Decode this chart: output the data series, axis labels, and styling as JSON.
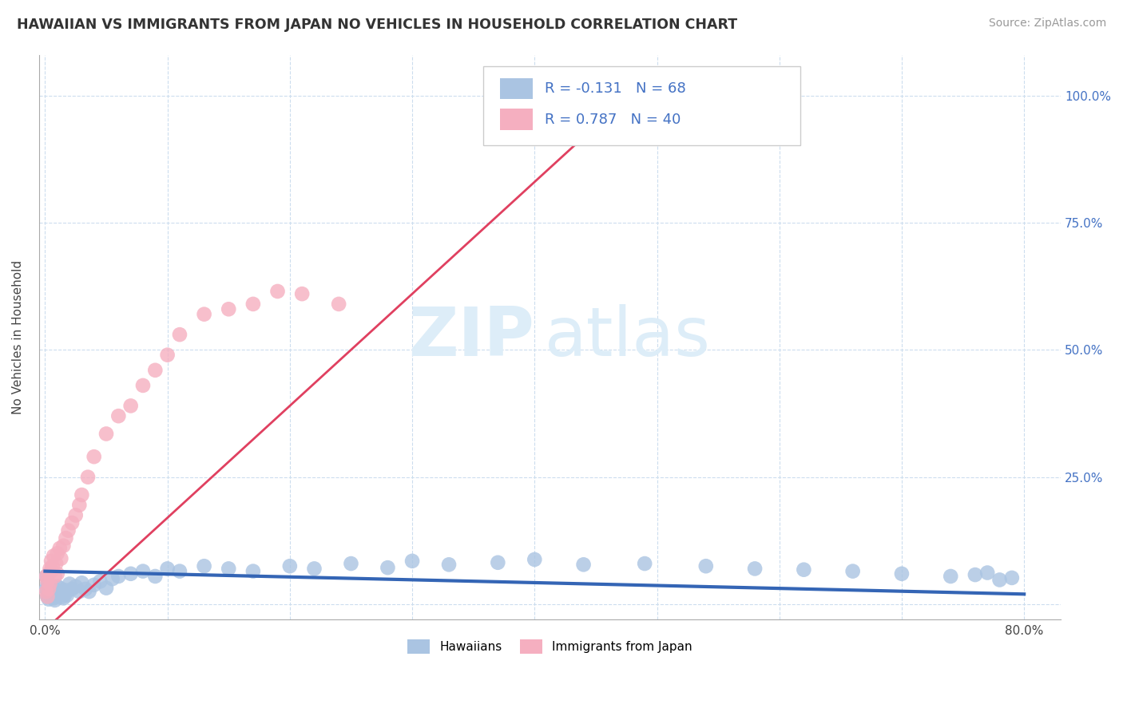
{
  "title": "HAWAIIAN VS IMMIGRANTS FROM JAPAN NO VEHICLES IN HOUSEHOLD CORRELATION CHART",
  "source": "Source: ZipAtlas.com",
  "ylabel": "No Vehicles in Household",
  "xlim": [
    -0.005,
    0.83
  ],
  "ylim": [
    -0.03,
    1.08
  ],
  "background_color": "#ffffff",
  "grid_color": "#ccddee",
  "hawaiians_color": "#aac4e2",
  "japan_color": "#f5afc0",
  "hawaiians_line_color": "#3465b5",
  "japan_line_color": "#e04060",
  "watermark_zip": "ZIP",
  "watermark_atlas": "atlas",
  "watermark_color": "#ddedf8",
  "hawaiians_R": -0.131,
  "hawaiians_N": 68,
  "japan_R": 0.787,
  "japan_N": 40,
  "legend_text_color": "#4472c4",
  "hawaiians_x": [
    0.001,
    0.001,
    0.002,
    0.002,
    0.003,
    0.003,
    0.004,
    0.004,
    0.005,
    0.005,
    0.006,
    0.006,
    0.007,
    0.007,
    0.008,
    0.008,
    0.009,
    0.009,
    0.01,
    0.01,
    0.011,
    0.012,
    0.013,
    0.014,
    0.015,
    0.016,
    0.017,
    0.018,
    0.02,
    0.022,
    0.025,
    0.028,
    0.03,
    0.033,
    0.036,
    0.04,
    0.045,
    0.05,
    0.055,
    0.06,
    0.07,
    0.08,
    0.09,
    0.1,
    0.11,
    0.13,
    0.15,
    0.17,
    0.2,
    0.22,
    0.25,
    0.28,
    0.3,
    0.33,
    0.37,
    0.4,
    0.44,
    0.49,
    0.54,
    0.58,
    0.62,
    0.66,
    0.7,
    0.74,
    0.76,
    0.77,
    0.78,
    0.79
  ],
  "hawaiians_y": [
    0.055,
    0.03,
    0.04,
    0.015,
    0.025,
    0.01,
    0.02,
    0.035,
    0.015,
    0.028,
    0.022,
    0.018,
    0.03,
    0.012,
    0.025,
    0.008,
    0.02,
    0.015,
    0.035,
    0.018,
    0.025,
    0.032,
    0.02,
    0.015,
    0.012,
    0.028,
    0.022,
    0.018,
    0.04,
    0.03,
    0.035,
    0.025,
    0.042,
    0.03,
    0.025,
    0.038,
    0.045,
    0.032,
    0.05,
    0.055,
    0.06,
    0.065,
    0.055,
    0.07,
    0.065,
    0.075,
    0.07,
    0.065,
    0.075,
    0.07,
    0.08,
    0.072,
    0.085,
    0.078,
    0.082,
    0.088,
    0.078,
    0.08,
    0.075,
    0.07,
    0.068,
    0.065,
    0.06,
    0.055,
    0.058,
    0.062,
    0.048,
    0.052
  ],
  "japan_x": [
    0.001,
    0.001,
    0.002,
    0.002,
    0.003,
    0.003,
    0.004,
    0.004,
    0.005,
    0.005,
    0.006,
    0.007,
    0.008,
    0.009,
    0.01,
    0.01,
    0.012,
    0.013,
    0.015,
    0.017,
    0.019,
    0.022,
    0.025,
    0.028,
    0.03,
    0.035,
    0.04,
    0.05,
    0.06,
    0.07,
    0.08,
    0.09,
    0.1,
    0.11,
    0.13,
    0.15,
    0.17,
    0.19,
    0.21,
    0.24
  ],
  "japan_y": [
    0.055,
    0.025,
    0.045,
    0.015,
    0.06,
    0.03,
    0.07,
    0.04,
    0.065,
    0.085,
    0.075,
    0.095,
    0.055,
    0.08,
    0.06,
    0.1,
    0.11,
    0.09,
    0.115,
    0.13,
    0.145,
    0.16,
    0.175,
    0.195,
    0.215,
    0.25,
    0.29,
    0.335,
    0.37,
    0.39,
    0.43,
    0.46,
    0.49,
    0.53,
    0.57,
    0.58,
    0.59,
    0.615,
    0.61,
    0.59
  ],
  "japan_line_x0": 0.0,
  "japan_line_y0": -0.05,
  "japan_line_x1": 0.5,
  "japan_line_y1": 1.05,
  "hawaiians_line_x0": 0.0,
  "hawaiians_line_y0": 0.065,
  "hawaiians_line_x1": 0.8,
  "hawaiians_line_y1": 0.02
}
